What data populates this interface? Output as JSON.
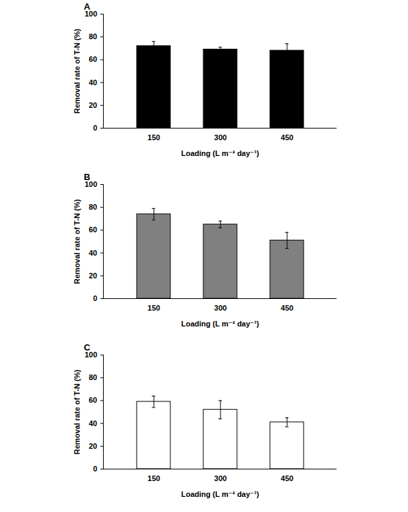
{
  "chart_data": [
    {
      "type": "bar",
      "title": "A",
      "x_label": "Loading (L m⁻² day⁻¹)",
      "y_label": "Removal rate of T-N (%)",
      "categories": [
        "150",
        "300",
        "450"
      ],
      "values": [
        72,
        69,
        68
      ],
      "errors": [
        4,
        2,
        6
      ],
      "color": "#000000",
      "ylim": [
        0,
        100
      ],
      "yticks": [
        0,
        20,
        40,
        60,
        80,
        100
      ]
    },
    {
      "type": "bar",
      "title": "B",
      "x_label": "Loading (L m⁻² day⁻¹)",
      "y_label": "Removal rate of T-N (%)",
      "categories": [
        "150",
        "300",
        "450"
      ],
      "values": [
        74,
        65,
        51
      ],
      "errors": [
        5,
        3,
        7
      ],
      "color": "#808080",
      "ylim": [
        0,
        100
      ],
      "yticks": [
        0,
        20,
        40,
        60,
        80,
        100
      ]
    },
    {
      "type": "bar",
      "title": "C",
      "x_label": "Loading (L m⁻² day⁻¹)",
      "y_label": "Removal rate of T-N (%)",
      "categories": [
        "150",
        "300",
        "450"
      ],
      "values": [
        59,
        52,
        41
      ],
      "errors": [
        5,
        8,
        4
      ],
      "color": "#ffffff",
      "ylim": [
        0,
        100
      ],
      "yticks": [
        0,
        20,
        40,
        60,
        80,
        100
      ]
    }
  ]
}
